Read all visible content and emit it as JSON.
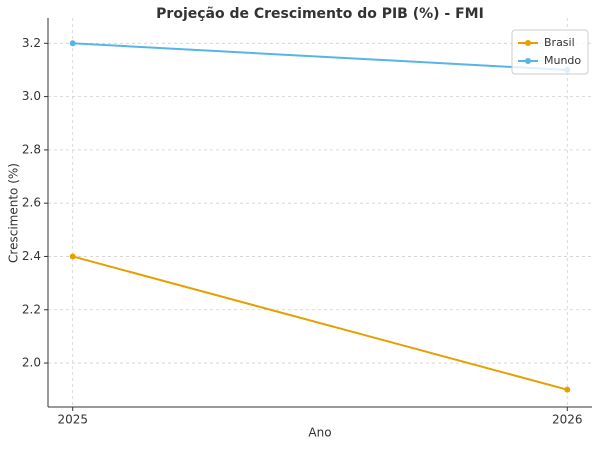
{
  "chart_data": {
    "type": "line",
    "title": "Projeção de Crescimento do PIB (%) - FMI",
    "x_label": "Ano",
    "y_label": "Crescimento (%)",
    "x": [
      2025,
      2026
    ],
    "series": [
      {
        "name": "Brasil",
        "color": "#e69f00",
        "values": [
          2.4,
          1.9
        ]
      },
      {
        "name": "Mundo",
        "color": "#56b4e9",
        "values": [
          3.2,
          3.1
        ]
      }
    ],
    "xlim": [
      2024.95,
      2026.05
    ],
    "xticks": [
      2025,
      2026
    ],
    "ylim": [
      1.835,
      3.295
    ],
    "yticks": [
      {
        "value": 2,
        "label": "2.0"
      },
      2.2,
      2.4,
      2.6,
      2.8,
      {
        "value": 3,
        "label": "3.0"
      },
      3.2
    ],
    "grid": true,
    "legend": "upper right"
  }
}
